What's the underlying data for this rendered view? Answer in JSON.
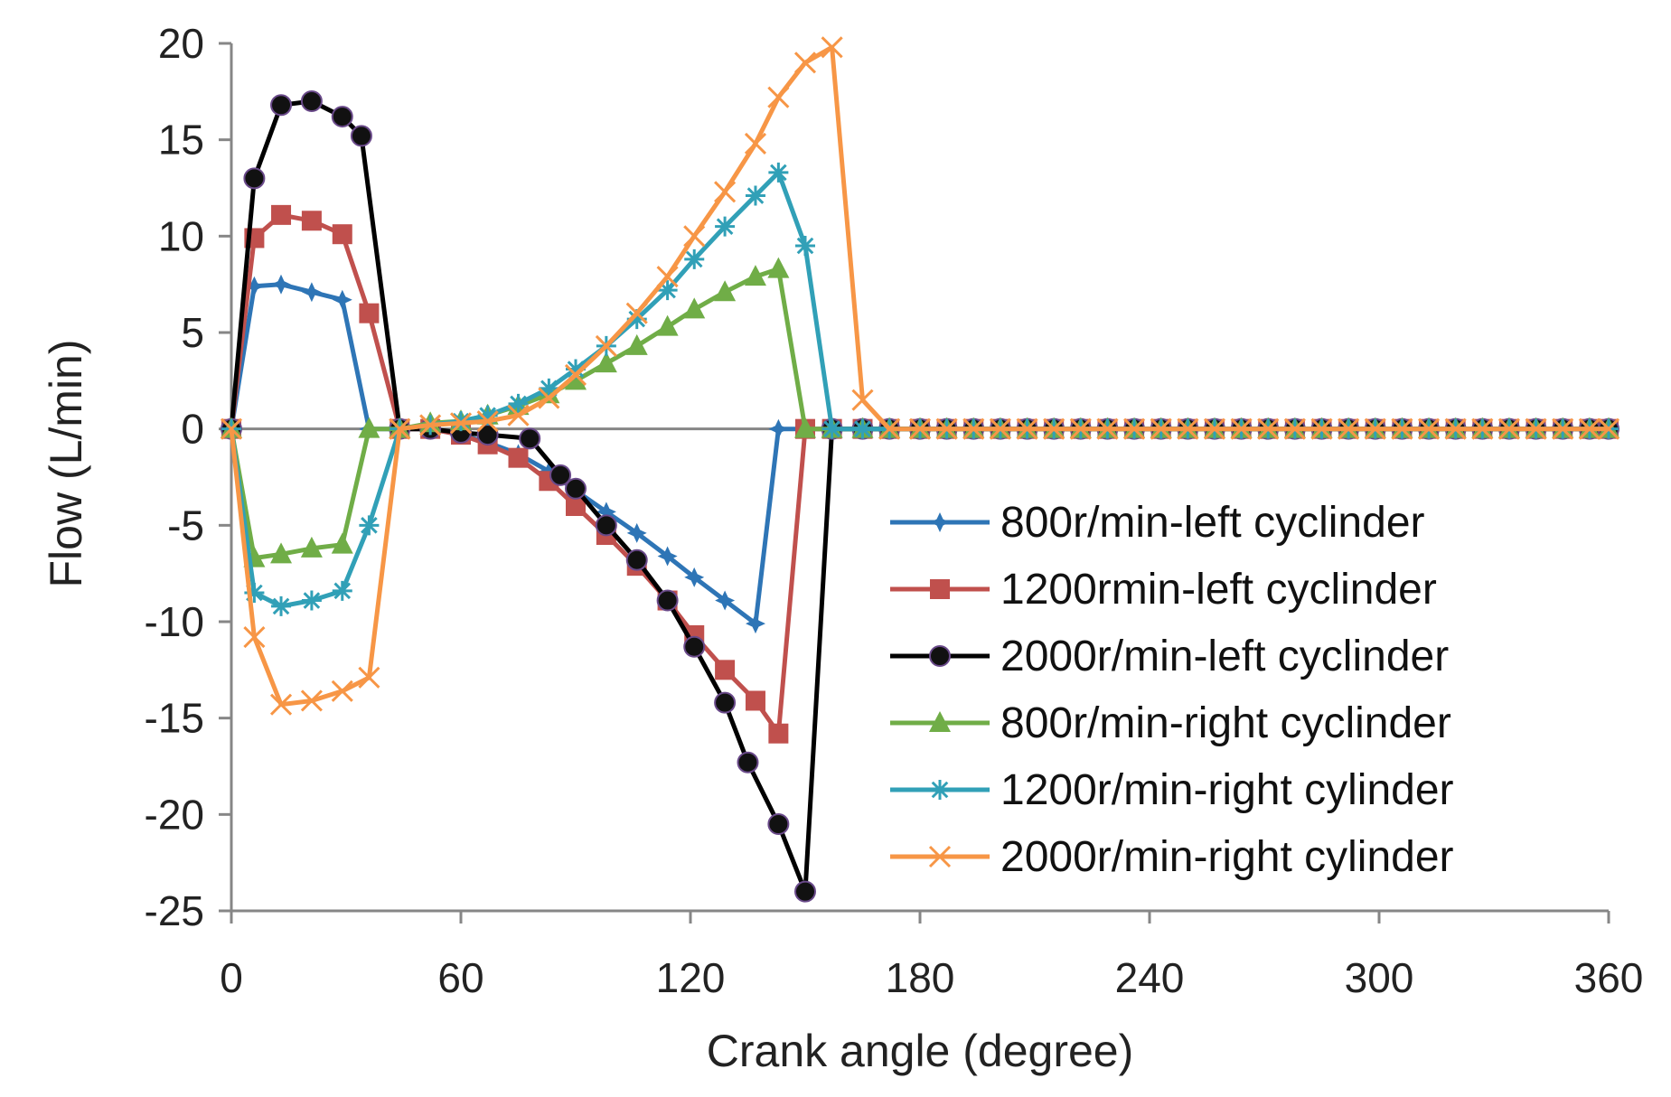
{
  "chart_data": {
    "type": "line",
    "title": "",
    "xlabel": "Crank angle (degree)",
    "ylabel": "Flow  (L/min)",
    "xlim": [
      0,
      360
    ],
    "ylim": [
      -25,
      20
    ],
    "xticks": [
      0,
      60,
      120,
      180,
      240,
      300,
      360
    ],
    "yticks": [
      20,
      15,
      10,
      5,
      0,
      -5,
      -10,
      -15,
      -20,
      -25
    ],
    "grid": false,
    "legend_position": "lower-right",
    "series": [
      {
        "name": "800r/min-left cyclinder",
        "color": "#2e75b6",
        "marker": "star",
        "x": [
          0,
          6,
          13,
          21,
          29,
          36,
          44,
          52,
          60,
          67,
          75,
          83,
          90,
          98,
          106,
          114,
          121,
          129,
          137,
          143,
          150,
          157,
          165,
          172,
          180,
          187,
          194,
          201,
          208,
          215,
          222,
          229,
          236,
          243,
          250,
          257,
          264,
          271,
          278,
          285,
          292,
          299,
          306,
          313,
          320,
          327,
          334,
          341,
          348,
          355,
          360
        ],
        "y": [
          0,
          7.4,
          7.5,
          7.1,
          6.7,
          0,
          0,
          0,
          -0.3,
          -0.7,
          -1.3,
          -2.2,
          -3.2,
          -4.3,
          -5.4,
          -6.6,
          -7.7,
          -8.9,
          -10.1,
          0,
          0,
          0,
          0,
          0,
          0,
          0,
          0,
          0,
          0,
          0,
          0,
          0,
          0,
          0,
          0,
          0,
          0,
          0,
          0,
          0,
          0,
          0,
          0,
          0,
          0,
          0,
          0,
          0,
          0,
          0,
          0
        ]
      },
      {
        "name": "1200rmin-left cyclinder",
        "color": "#c0504d",
        "marker": "square",
        "x": [
          0,
          6,
          13,
          21,
          29,
          36,
          44,
          52,
          60,
          67,
          75,
          83,
          90,
          98,
          106,
          114,
          121,
          129,
          137,
          143,
          150,
          157,
          165,
          172,
          180,
          187,
          194,
          201,
          208,
          215,
          222,
          229,
          236,
          243,
          250,
          257,
          264,
          271,
          278,
          285,
          292,
          299,
          306,
          313,
          320,
          327,
          334,
          341,
          348,
          355,
          360
        ],
        "y": [
          0,
          9.9,
          11.1,
          10.8,
          10.1,
          6.0,
          0,
          0,
          -0.3,
          -0.8,
          -1.5,
          -2.7,
          -4.0,
          -5.5,
          -7.1,
          -8.9,
          -10.7,
          -12.5,
          -14.1,
          -15.8,
          0,
          0,
          0,
          0,
          0,
          0,
          0,
          0,
          0,
          0,
          0,
          0,
          0,
          0,
          0,
          0,
          0,
          0,
          0,
          0,
          0,
          0,
          0,
          0,
          0,
          0,
          0,
          0,
          0,
          0,
          0
        ]
      },
      {
        "name": "2000r/min-left cyclinder",
        "color": "#000000",
        "marker": "circle",
        "x": [
          0,
          6,
          13,
          21,
          29,
          34,
          44,
          52,
          60,
          67,
          78,
          86,
          90,
          98,
          106,
          114,
          121,
          129,
          135,
          143,
          150,
          157,
          165,
          172,
          180,
          187,
          194,
          201,
          208,
          215,
          222,
          229,
          236,
          243,
          250,
          257,
          264,
          271,
          278,
          285,
          292,
          299,
          306,
          313,
          320,
          327,
          334,
          341,
          348,
          355,
          360
        ],
        "y": [
          0,
          13.0,
          16.8,
          17.0,
          16.2,
          15.2,
          0,
          0,
          -0.2,
          -0.3,
          -0.5,
          -2.4,
          -3.1,
          -5.0,
          -6.8,
          -8.9,
          -11.3,
          -14.2,
          -17.3,
          -20.5,
          -24.0,
          0,
          0,
          0,
          0,
          0,
          0,
          0,
          0,
          0,
          0,
          0,
          0,
          0,
          0,
          0,
          0,
          0,
          0,
          0,
          0,
          0,
          0,
          0,
          0,
          0,
          0,
          0,
          0,
          0,
          0
        ]
      },
      {
        "name": "800r/min-right cyclinder",
        "color": "#70ad47",
        "marker": "triangle",
        "x": [
          0,
          6,
          13,
          21,
          29,
          36,
          44,
          52,
          60,
          67,
          75,
          83,
          90,
          98,
          106,
          114,
          121,
          129,
          137,
          143,
          150,
          157,
          165,
          172,
          180,
          187,
          194,
          201,
          208,
          215,
          222,
          229,
          236,
          243,
          250,
          257,
          264,
          271,
          278,
          285,
          292,
          299,
          306,
          313,
          320,
          327,
          334,
          341,
          348,
          355,
          360
        ],
        "y": [
          0,
          -6.7,
          -6.5,
          -6.2,
          -6.0,
          0,
          0,
          0.3,
          0.4,
          0.7,
          1.2,
          1.8,
          2.5,
          3.4,
          4.3,
          5.3,
          6.2,
          7.1,
          7.9,
          8.3,
          0,
          0,
          0,
          0,
          0,
          0,
          0,
          0,
          0,
          0,
          0,
          0,
          0,
          0,
          0,
          0,
          0,
          0,
          0,
          0,
          0,
          0,
          0,
          0,
          0,
          0,
          0,
          0,
          0,
          0,
          0
        ]
      },
      {
        "name": "1200r/min-right cylinder",
        "color": "#31a0b7",
        "marker": "asterisk",
        "x": [
          0,
          6,
          13,
          21,
          29,
          36,
          44,
          52,
          60,
          67,
          75,
          83,
          90,
          98,
          106,
          114,
          121,
          129,
          137,
          143,
          150,
          157,
          165,
          172,
          180,
          187,
          194,
          201,
          208,
          215,
          222,
          229,
          236,
          243,
          250,
          257,
          264,
          271,
          278,
          285,
          292,
          299,
          306,
          313,
          320,
          327,
          334,
          341,
          348,
          355,
          360
        ],
        "y": [
          0,
          -8.5,
          -9.2,
          -8.9,
          -8.4,
          -5.0,
          0,
          0.2,
          0.4,
          0.7,
          1.3,
          2.1,
          3.1,
          4.3,
          5.7,
          7.2,
          8.8,
          10.5,
          12.1,
          13.3,
          9.5,
          0,
          0,
          0,
          0,
          0,
          0,
          0,
          0,
          0,
          0,
          0,
          0,
          0,
          0,
          0,
          0,
          0,
          0,
          0,
          0,
          0,
          0,
          0,
          0,
          0,
          0,
          0,
          0,
          0,
          0
        ]
      },
      {
        "name": "2000r/min-right cylinder",
        "color": "#f79646",
        "marker": "x",
        "x": [
          0,
          6,
          13,
          21,
          29,
          36,
          44,
          52,
          60,
          67,
          75,
          83,
          90,
          98,
          106,
          114,
          121,
          129,
          137,
          143,
          150,
          157,
          165,
          172,
          180,
          187,
          194,
          201,
          208,
          215,
          222,
          229,
          236,
          243,
          250,
          257,
          264,
          271,
          278,
          285,
          292,
          299,
          306,
          313,
          320,
          327,
          334,
          341,
          348,
          355,
          360
        ],
        "y": [
          0,
          -10.8,
          -14.3,
          -14.1,
          -13.6,
          -12.9,
          0,
          0.2,
          0.3,
          0.4,
          0.7,
          1.6,
          2.8,
          4.3,
          6.0,
          7.9,
          10.0,
          12.3,
          14.8,
          17.2,
          19.0,
          19.8,
          1.5,
          0,
          0,
          0,
          0,
          0,
          0,
          0,
          0,
          0,
          0,
          0,
          0,
          0,
          0,
          0,
          0,
          0,
          0,
          0,
          0,
          0,
          0,
          0,
          0,
          0,
          0,
          0,
          0
        ]
      }
    ]
  }
}
